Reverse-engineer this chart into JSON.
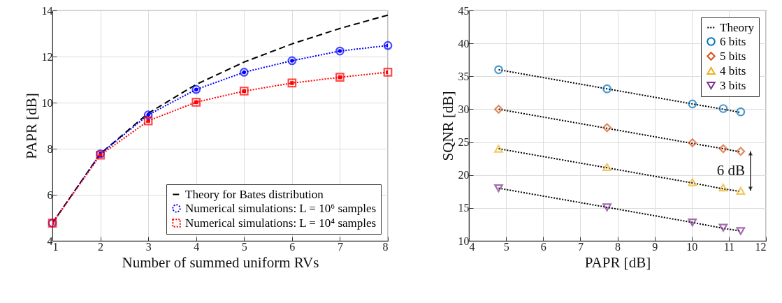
{
  "chart_data": [
    {
      "type": "line",
      "xlabel": "Number of summed uniform RVs",
      "ylabel": "PAPR [dB]",
      "x": [
        1,
        2,
        3,
        4,
        5,
        6,
        7,
        8
      ],
      "xlim": [
        1,
        8
      ],
      "ylim": [
        4,
        14
      ],
      "xticks": [
        1,
        2,
        3,
        4,
        5,
        6,
        7,
        8
      ],
      "yticks": [
        4,
        6,
        8,
        10,
        12,
        14
      ],
      "grid": true,
      "legend": "bottom right",
      "series": [
        {
          "name": "Theory for Bates distribution",
          "color": "#000000",
          "line_style": "dashed",
          "marker": "none",
          "values": [
            4.77,
            7.78,
            9.54,
            10.79,
            11.76,
            12.55,
            13.22,
            13.8
          ]
        },
        {
          "name": "Numerical simulations: L = 10⁶ samples",
          "color": "#0000ff",
          "line_style": "dotted",
          "marker": "circle",
          "values": [
            4.77,
            7.78,
            9.47,
            10.57,
            11.32,
            11.82,
            12.24,
            12.48
          ]
        },
        {
          "name": "Numerical simulations: L = 10⁴ samples",
          "color": "#ff0000",
          "line_style": "dotted",
          "marker": "square",
          "values": [
            4.77,
            7.72,
            9.21,
            10.02,
            10.5,
            10.85,
            11.1,
            11.32
          ]
        }
      ]
    },
    {
      "type": "scatter",
      "xlabel": "PAPR [dB]",
      "ylabel": "SQNR [dB]",
      "x": [
        4.8,
        7.72,
        10.02,
        10.85,
        11.32
      ],
      "xlim": [
        4,
        12
      ],
      "ylim": [
        10,
        45
      ],
      "xticks": [
        4,
        5,
        6,
        7,
        8,
        9,
        10,
        11,
        12
      ],
      "yticks": [
        10,
        15,
        20,
        25,
        30,
        35,
        40,
        45
      ],
      "grid": true,
      "legend": "top right",
      "annotations": [
        "6 dB"
      ],
      "series": [
        {
          "name": "Theory",
          "type": "line",
          "color": "#000000",
          "line_style": "dotted",
          "marker": "none",
          "values": [
            36.0,
            33.1,
            30.8,
            30.0,
            29.5
          ]
        },
        {
          "type": "line",
          "color": "#000000",
          "line_style": "dotted",
          "marker": "none",
          "values": [
            30.0,
            27.1,
            24.8,
            24.0,
            23.5
          ]
        },
        {
          "type": "line",
          "color": "#000000",
          "line_style": "dotted",
          "marker": "none",
          "values": [
            24.0,
            21.1,
            18.8,
            17.9,
            17.5
          ]
        },
        {
          "type": "line",
          "color": "#000000",
          "line_style": "dotted",
          "marker": "none",
          "values": [
            18.0,
            15.1,
            12.8,
            11.9,
            11.5
          ]
        },
        {
          "name": "6 bits",
          "color": "#0072bd",
          "marker": "circle",
          "values": [
            36.0,
            33.1,
            30.8,
            30.1,
            29.6
          ]
        },
        {
          "name": "5 bits",
          "color": "#d95319",
          "marker": "diamond",
          "values": [
            30.0,
            27.2,
            24.9,
            24.0,
            23.6
          ]
        },
        {
          "name": "4 bits",
          "color": "#edb120",
          "marker": "triangle",
          "values": [
            24.0,
            21.2,
            18.9,
            18.1,
            17.6
          ]
        },
        {
          "name": "3 bits",
          "color": "#7e2f8e",
          "marker": "triangle-down",
          "values": [
            18.0,
            15.1,
            12.8,
            12.0,
            11.5
          ]
        }
      ]
    }
  ]
}
